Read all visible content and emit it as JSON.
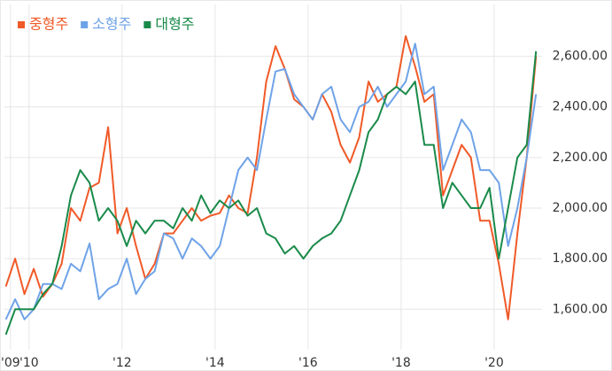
{
  "chart_data": {
    "type": "line",
    "x": [
      2009.5,
      2009.7,
      2009.9,
      2010.1,
      2010.3,
      2010.5,
      2010.7,
      2010.9,
      2011.1,
      2011.3,
      2011.5,
      2011.7,
      2011.9,
      2012.1,
      2012.3,
      2012.5,
      2012.7,
      2012.9,
      2013.1,
      2013.3,
      2013.5,
      2013.7,
      2013.9,
      2014.1,
      2014.3,
      2014.5,
      2014.7,
      2014.9,
      2015.1,
      2015.3,
      2015.5,
      2015.7,
      2015.9,
      2016.1,
      2016.3,
      2016.5,
      2016.7,
      2016.9,
      2017.1,
      2017.3,
      2017.5,
      2017.7,
      2017.9,
      2018.1,
      2018.3,
      2018.5,
      2018.7,
      2018.9,
      2019.1,
      2019.3,
      2019.5,
      2019.7,
      2019.9,
      2020.1,
      2020.3,
      2020.5,
      2020.7,
      2020.9
    ],
    "series": [
      {
        "name": "중형주",
        "color": "#f05a28",
        "values": [
          1690,
          1800,
          1660,
          1760,
          1650,
          1700,
          1780,
          2000,
          1950,
          2080,
          2100,
          2320,
          1900,
          2000,
          1850,
          1720,
          1780,
          1900,
          1900,
          1950,
          2000,
          1950,
          1970,
          1980,
          2050,
          2000,
          1980,
          2200,
          2500,
          2640,
          2550,
          2430,
          2400,
          2350,
          2450,
          2380,
          2250,
          2180,
          2280,
          2500,
          2420,
          2450,
          2480,
          2680,
          2560,
          2420,
          2450,
          2050,
          2150,
          2250,
          2200,
          1950,
          1950,
          1780,
          1560,
          1900,
          2200,
          2600
        ]
      },
      {
        "name": "소형주",
        "color": "#6fa3e8",
        "values": [
          1560,
          1640,
          1560,
          1600,
          1700,
          1700,
          1680,
          1780,
          1750,
          1860,
          1640,
          1680,
          1700,
          1800,
          1660,
          1720,
          1750,
          1900,
          1880,
          1800,
          1880,
          1850,
          1800,
          1850,
          2000,
          2150,
          2200,
          2150,
          2350,
          2540,
          2550,
          2450,
          2400,
          2350,
          2450,
          2480,
          2350,
          2300,
          2400,
          2420,
          2480,
          2400,
          2450,
          2500,
          2650,
          2450,
          2480,
          2150,
          2250,
          2350,
          2300,
          2150,
          2150,
          2100,
          1850,
          2000,
          2200,
          2450
        ]
      },
      {
        "name": "대형주",
        "color": "#1a8a4a",
        "values": [
          1500,
          1600,
          1600,
          1600,
          1660,
          1700,
          1850,
          2050,
          2150,
          2100,
          1950,
          2000,
          1950,
          1850,
          1950,
          1900,
          1950,
          1950,
          1920,
          2000,
          1950,
          2050,
          1980,
          2030,
          2000,
          2030,
          1970,
          2000,
          1900,
          1880,
          1820,
          1850,
          1800,
          1850,
          1880,
          1900,
          1950,
          2050,
          2150,
          2300,
          2350,
          2450,
          2480,
          2450,
          2500,
          2250,
          2250,
          2000,
          2100,
          2050,
          2000,
          2000,
          2080,
          1800,
          2000,
          2200,
          2250,
          2620
        ]
      }
    ],
    "xlim": [
      2009.47,
      2021.03
    ],
    "xticks": [
      {
        "value": 2009.6,
        "label": "'09"
      },
      {
        "value": 2010,
        "label": "'10"
      },
      {
        "value": 2012,
        "label": "'12"
      },
      {
        "value": 2014,
        "label": "'14"
      },
      {
        "value": 2016,
        "label": "'16"
      },
      {
        "value": 2018,
        "label": "'18"
      },
      {
        "value": 2020,
        "label": "'20"
      }
    ],
    "ylim": [
      1440,
      2805
    ],
    "yticks": [
      {
        "value": 1600,
        "label": "1,600.00"
      },
      {
        "value": 1800,
        "label": "1,800.00"
      },
      {
        "value": 2000,
        "label": "2,000.00"
      },
      {
        "value": 2200,
        "label": "2,200.00"
      },
      {
        "value": 2400,
        "label": "2,400.00"
      },
      {
        "value": 2600,
        "label": "2,600.00"
      }
    ],
    "grid": true,
    "legend": "top-left"
  }
}
